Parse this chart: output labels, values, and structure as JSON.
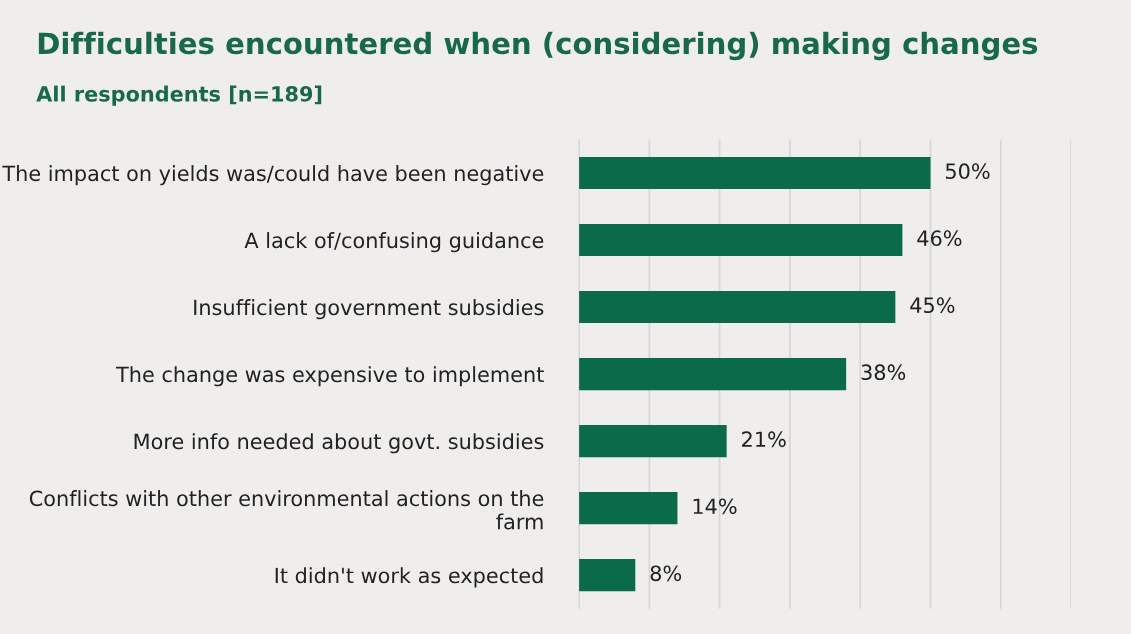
{
  "chart_data": {
    "type": "bar",
    "orientation": "horizontal",
    "title": "Difficulties encountered when (considering) making changes",
    "subtitle": "All respondents [n=189]",
    "categories": [
      "The impact on yields was/could have been negative",
      "A lack of/confusing guidance",
      "Insufficient government subsidies",
      "The change was expensive to implement",
      "More info needed about govt. subsidies",
      "Conflicts with other environmental actions on the farm",
      "It didn't work as expected"
    ],
    "values": [
      50,
      46,
      45,
      38,
      21,
      14,
      8
    ],
    "value_labels": [
      "50%",
      "46%",
      "45%",
      "38%",
      "21%",
      "14%",
      "8%"
    ],
    "color": "#0b6a4a",
    "xlim": [
      0,
      70
    ],
    "xticks": [
      {
        "value": 0,
        "label": null
      },
      {
        "value": 10,
        "label": null
      },
      {
        "value": 20,
        "label": null
      },
      {
        "value": 30,
        "label": null
      },
      {
        "value": 40,
        "label": null
      },
      {
        "value": 50,
        "label": null
      },
      {
        "value": 60,
        "label": null
      },
      {
        "value": 70,
        "label": null
      }
    ],
    "grid": "x"
  }
}
